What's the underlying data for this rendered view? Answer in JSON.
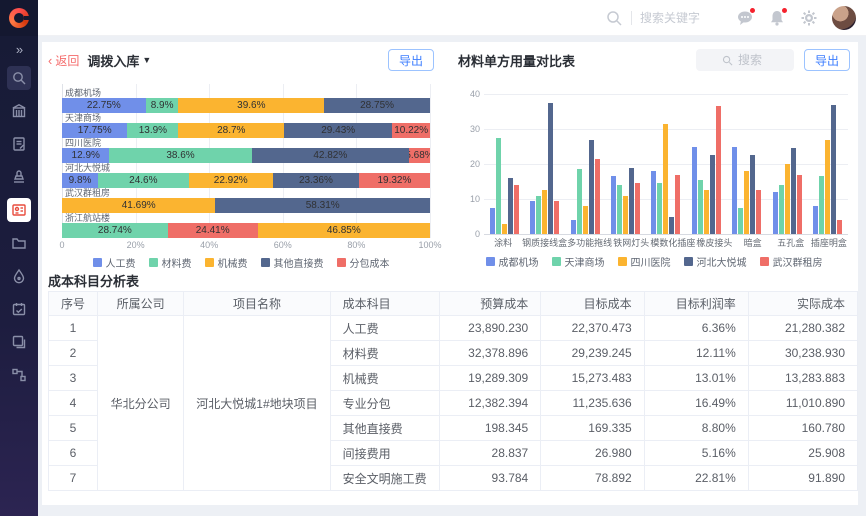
{
  "topbar": {
    "search_placeholder": "搜索关键字",
    "icons": [
      "search-icon",
      "chat-icon",
      "bell-icon",
      "gear-icon",
      "avatar"
    ]
  },
  "sidebar": {
    "items": [
      {
        "name": "search",
        "icon": "search",
        "highlight": true
      },
      {
        "name": "org",
        "icon": "building"
      },
      {
        "name": "contract",
        "icon": "doc-edit"
      },
      {
        "name": "approval",
        "icon": "stamp"
      },
      {
        "name": "materials",
        "icon": "id-card",
        "active": true
      },
      {
        "name": "files",
        "icon": "folder"
      },
      {
        "name": "ink",
        "icon": "drop"
      },
      {
        "name": "schedule",
        "icon": "calendar"
      },
      {
        "name": "copy",
        "icon": "copy"
      },
      {
        "name": "workflow",
        "icon": "workflow"
      }
    ]
  },
  "left_panel": {
    "back_label": "返回",
    "title": "调拨入库",
    "export_label": "导出"
  },
  "right_panel": {
    "title": "材料单方用量对比表",
    "search_placeholder": "搜索",
    "export_label": "导出"
  },
  "colors": {
    "blue": "#708FE9",
    "green": "#6FD3AB",
    "orange": "#FBB430",
    "slate": "#53678E",
    "red": "#EF6E67",
    "accent": "#3d7eff",
    "back_red": "#f56c6c"
  },
  "chart_data": [
    {
      "type": "bar",
      "orientation": "horizontal-stacked",
      "title": "调拨入库",
      "categories": [
        "成都机场",
        "天津商场",
        "四川医院",
        "河北大悦城",
        "武汉群租房",
        "浙江航站楼"
      ],
      "x_ticks": [
        "0",
        "20%",
        "40%",
        "60%",
        "80%",
        "100%"
      ],
      "xlim": [
        0,
        100
      ],
      "legend": [
        {
          "name": "人工费",
          "color": "#708FE9"
        },
        {
          "name": "材料费",
          "color": "#6FD3AB"
        },
        {
          "name": "机械费",
          "color": "#FBB430"
        },
        {
          "name": "其他直接费",
          "color": "#53678E"
        },
        {
          "name": "分包成本",
          "color": "#EF6E67"
        }
      ],
      "rows": [
        [
          {
            "series": "人工费",
            "value": 22.75,
            "label": "22.75%"
          },
          {
            "series": "材料费",
            "value": 8.9,
            "label": "8.9%"
          },
          {
            "series": "机械费",
            "value": 39.6,
            "label": "39.6%"
          },
          {
            "series": "其他直接费",
            "value": 28.75,
            "label": "28.75%"
          }
        ],
        [
          {
            "series": "人工费",
            "value": 17.75,
            "label": "17.75%"
          },
          {
            "series": "材料费",
            "value": 13.9,
            "label": "13.9%"
          },
          {
            "series": "机械费",
            "value": 28.7,
            "label": "28.7%"
          },
          {
            "series": "其他直接费",
            "value": 29.43,
            "label": "29.43%"
          },
          {
            "series": "分包成本",
            "value": 10.22,
            "label": "10.22%"
          }
        ],
        [
          {
            "series": "人工费",
            "value": 12.9,
            "label": "12.9%"
          },
          {
            "series": "材料费",
            "value": 38.6,
            "label": "38.6%"
          },
          {
            "series": "其他直接费",
            "value": 42.82,
            "label": "42.82%"
          },
          {
            "series": "分包成本",
            "value": 5.68,
            "label": "5.68%"
          }
        ],
        [
          {
            "series": "人工费",
            "value": 9.8,
            "label": "9.8%"
          },
          {
            "series": "材料费",
            "value": 24.6,
            "label": "24.6%"
          },
          {
            "series": "机械费",
            "value": 22.92,
            "label": "22.92%"
          },
          {
            "series": "其他直接费",
            "value": 23.36,
            "label": "23.36%"
          },
          {
            "series": "分包成本",
            "value": 19.32,
            "label": "19.32%"
          }
        ],
        [
          {
            "series": "机械费",
            "value": 41.69,
            "label": "41.69%"
          },
          {
            "series": "其他直接费",
            "value": 58.31,
            "label": "58.31%"
          }
        ],
        [
          {
            "series": "材料费",
            "value": 28.74,
            "label": "28.74%"
          },
          {
            "series": "分包成本",
            "value": 24.41,
            "label": "24.41%"
          },
          {
            "series": "机械费",
            "value": 46.85,
            "label": "46.85%"
          }
        ]
      ]
    },
    {
      "type": "bar",
      "orientation": "vertical-grouped",
      "title": "材料单方用量对比表",
      "categories": [
        "涂料",
        "钢质接线盒",
        "多功能拖线",
        "铁网灯头",
        "模数化插座",
        "橡皮接头",
        "暗盒",
        "五孔盒",
        "插座明盒"
      ],
      "ylim": [
        0,
        40
      ],
      "y_ticks": [
        0,
        10,
        20,
        30,
        40
      ],
      "series": [
        {
          "name": "成都机场",
          "color": "#708FE9",
          "values": [
            7.5,
            9.5,
            4,
            16.5,
            18,
            25,
            25,
            12,
            8
          ]
        },
        {
          "name": "天津商场",
          "color": "#6FD3AB",
          "values": [
            27.5,
            11,
            18.5,
            14,
            14.5,
            15.5,
            7.5,
            14,
            16.5
          ]
        },
        {
          "name": "四川医院",
          "color": "#FBB430",
          "values": [
            3,
            12.5,
            8,
            11,
            31.5,
            12.5,
            18,
            20,
            27
          ]
        },
        {
          "name": "河北大悦城",
          "color": "#53678E",
          "values": [
            16,
            37.5,
            27,
            19,
            5,
            22.5,
            22.5,
            24.5,
            37
          ]
        },
        {
          "name": "武汉群租房",
          "color": "#EF6E67",
          "values": [
            14,
            9.5,
            21.5,
            14.5,
            17,
            36.5,
            12.5,
            17,
            4
          ]
        }
      ]
    }
  ],
  "table": {
    "title": "成本科目分析表",
    "columns": [
      "序号",
      "所属公司",
      "项目名称",
      "成本科目",
      "预算成本",
      "目标成本",
      "目标利润率",
      "实际成本"
    ],
    "company": "华北分公司",
    "project": "河北大悦城1#地块项目",
    "rows": [
      {
        "no": "1",
        "subject": "人工费",
        "budget": "23,890.230",
        "target": "22,370.473",
        "margin": "6.36%",
        "actual": "21,280.382"
      },
      {
        "no": "2",
        "subject": "材料费",
        "budget": "32,378.896",
        "target": "29,239.245",
        "margin": "12.11%",
        "actual": "30,238.930"
      },
      {
        "no": "3",
        "subject": "机械费",
        "budget": "19,289.309",
        "target": "15,273.483",
        "margin": "13.01%",
        "actual": "13,283.883"
      },
      {
        "no": "4",
        "subject": "专业分包",
        "budget": "12,382.394",
        "target": "11,235.636",
        "margin": "16.49%",
        "actual": "11,010.890"
      },
      {
        "no": "5",
        "subject": "其他直接费",
        "budget": "198.345",
        "target": "169.335",
        "margin": "8.80%",
        "actual": "160.780"
      },
      {
        "no": "6",
        "subject": "间接费用",
        "budget": "28.837",
        "target": "26.980",
        "margin": "5.16%",
        "actual": "25.908"
      },
      {
        "no": "7",
        "subject": "安全文明施工费",
        "budget": "93.784",
        "target": "78.892",
        "margin": "22.81%",
        "actual": "91.890"
      }
    ]
  }
}
